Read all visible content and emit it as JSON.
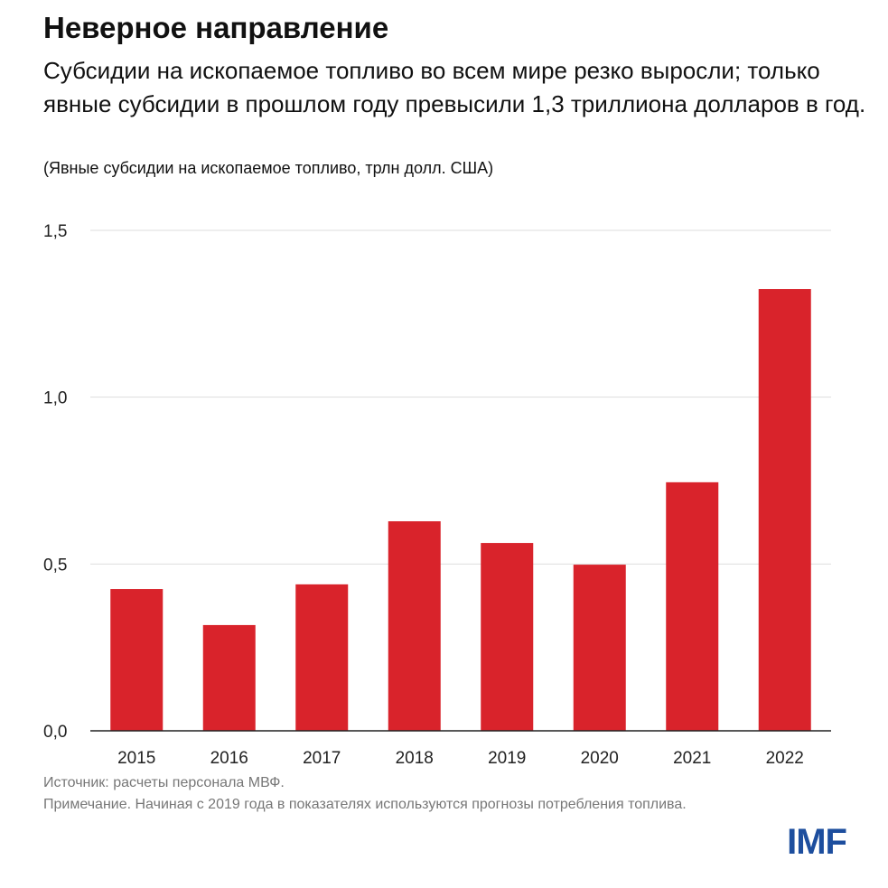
{
  "title": "Неверное направление",
  "subtitle": "Субсидии на ископаемое топливо во всем мире резко выросли; только явные субсидии в прошлом году превысили 1,3 триллиона долларов в год.",
  "unit_note": "(Явные субсидии на ископаемое топливо, трлн долл. США)",
  "source": "Источник: расчеты персонала МВФ.",
  "note": "Примечание. Начиная с 2019 года в показателях используются прогнозы потребления топлива.",
  "logo": "IMF",
  "chart_data": {
    "type": "bar",
    "categories": [
      "2015",
      "2016",
      "2017",
      "2018",
      "2019",
      "2020",
      "2021",
      "2022"
    ],
    "values": [
      0.425,
      0.317,
      0.439,
      0.628,
      0.563,
      0.498,
      0.745,
      1.324
    ],
    "ylim": [
      0,
      1.5
    ],
    "yticks": [
      "0,0",
      "0,5",
      "1,0",
      "1,5"
    ],
    "grid": true,
    "bar_color": "#d9232b",
    "xlabel": "",
    "ylabel": ""
  }
}
